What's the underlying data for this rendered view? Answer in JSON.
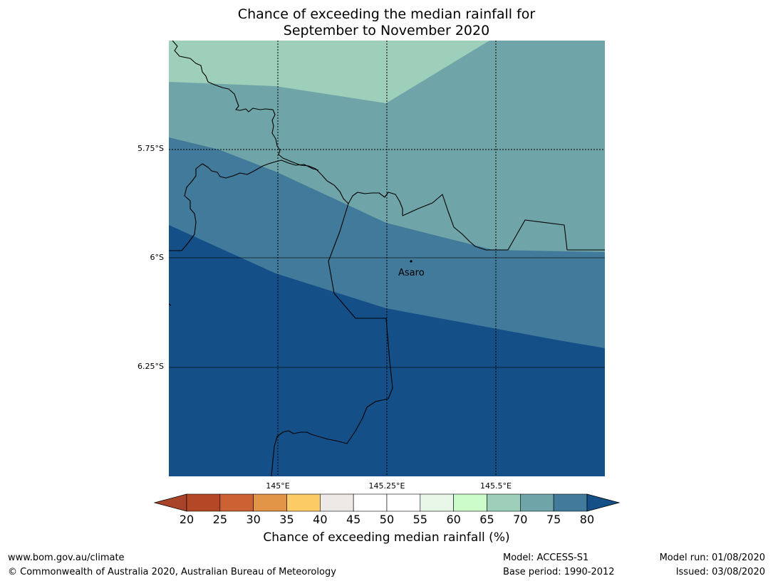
{
  "title_line1": "Chance of exceeding the median rainfall for",
  "title_line2": "September to November 2020",
  "map": {
    "lat_labels": [
      "5.75°S",
      "6°S",
      "6.25°S"
    ],
    "lon_labels": [
      "145°E",
      "145.25°E",
      "145.5°E"
    ],
    "place": {
      "name": "Asaro"
    },
    "band_colors": {
      "65_70": "#9ecfba",
      "70_75": "#6fa5a8",
      "75_80": "#417a9a",
      "gt80": "#154f88"
    }
  },
  "colorbar": {
    "ticks": [
      "20",
      "25",
      "30",
      "35",
      "40",
      "45",
      "50",
      "55",
      "60",
      "65",
      "70",
      "75",
      "80"
    ],
    "colors": [
      "#a9432a",
      "#b44826",
      "#cc6233",
      "#e39547",
      "#fdcb66",
      "#ede9e6",
      "#ffffff",
      "#ffffff",
      "#e8f6e8",
      "#cbfbc8",
      "#9ecfba",
      "#6fa5a8",
      "#417a9a",
      "#154f88"
    ],
    "label": "Chance of exceeding median rainfall (%)"
  },
  "footer": {
    "url": "www.bom.gov.au/climate",
    "copyright": "© Commonwealth of Australia 2020, Australian Bureau of Meteorology",
    "model": "Model: ACCESS-S1",
    "base_period": "Base period: 1990-2012",
    "model_run": "Model run: 01/08/2020",
    "issued": "Issued: 03/08/2020"
  }
}
